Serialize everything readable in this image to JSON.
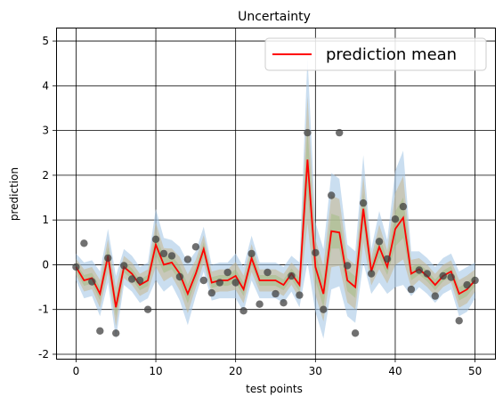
{
  "chart_data": {
    "type": "line",
    "title": "Uncertainty",
    "xlabel": "test points",
    "ylabel": "prediction",
    "xlim": [
      -2.5,
      52.5
    ],
    "ylim": [
      -2.1,
      5.3
    ],
    "xticks": [
      0,
      10,
      20,
      30,
      40,
      50
    ],
    "yticks": [
      -2,
      -1,
      0,
      1,
      2,
      3,
      4,
      5
    ],
    "grid": true,
    "legend": {
      "position": "top-right",
      "entries": [
        "prediction mean"
      ]
    },
    "colors": {
      "mean": "#ff0000",
      "points": "#404040",
      "band_outer": "#a6c8e6",
      "band_mid": "#c7b68e",
      "band_inner": "#9dbb7a"
    },
    "x": [
      0,
      1,
      2,
      3,
      4,
      5,
      6,
      7,
      8,
      9,
      10,
      11,
      12,
      13,
      14,
      15,
      16,
      17,
      18,
      19,
      20,
      21,
      22,
      23,
      24,
      25,
      26,
      27,
      28,
      29,
      30,
      31,
      32,
      33,
      34,
      35,
      36,
      37,
      38,
      39,
      40,
      41,
      42,
      43,
      44,
      45,
      46,
      47,
      48,
      49,
      50
    ],
    "series": [
      {
        "name": "prediction mean",
        "values": [
          -0.05,
          -0.35,
          -0.3,
          -0.65,
          0.2,
          -0.95,
          -0.05,
          -0.2,
          -0.45,
          -0.35,
          0.45,
          0.0,
          0.05,
          -0.2,
          -0.65,
          -0.2,
          0.35,
          -0.4,
          -0.35,
          -0.35,
          -0.25,
          -0.55,
          0.15,
          -0.35,
          -0.35,
          -0.35,
          -0.45,
          -0.2,
          -0.45,
          2.35,
          -0.05,
          -0.65,
          0.75,
          0.72,
          -0.35,
          -0.5,
          1.25,
          -0.15,
          0.4,
          -0.05,
          0.8,
          1.05,
          -0.2,
          -0.1,
          -0.25,
          -0.45,
          -0.25,
          -0.15,
          -0.65,
          -0.55,
          -0.35
        ]
      },
      {
        "name": "",
        "values": [
          -0.05,
          0.48,
          -0.38,
          -1.48,
          0.15,
          -1.53,
          -0.02,
          -0.32,
          -0.35,
          -1.0,
          0.57,
          0.25,
          0.2,
          -0.27,
          0.12,
          0.4,
          -0.35,
          -0.63,
          -0.4,
          -0.17,
          -0.4,
          -1.03,
          0.25,
          -0.88,
          -0.17,
          -0.65,
          -0.85,
          -0.25,
          -0.68,
          2.95,
          0.27,
          -1.0,
          1.55,
          2.95,
          -0.02,
          -1.53,
          1.38,
          -0.2,
          0.52,
          0.13,
          1.02,
          1.3,
          -0.55,
          -0.12,
          -0.2,
          -0.7,
          -0.25,
          -0.28,
          -1.25,
          -0.45,
          -0.35
        ]
      }
    ],
    "band_halfwidths": [
      0.3,
      0.4,
      0.4,
      0.5,
      0.6,
      0.7,
      0.4,
      0.4,
      0.4,
      0.4,
      0.8,
      0.6,
      0.5,
      0.6,
      0.7,
      0.5,
      0.5,
      0.4,
      0.4,
      0.4,
      0.5,
      0.5,
      0.5,
      0.4,
      0.4,
      0.4,
      0.4,
      0.4,
      0.5,
      2.3,
      1.0,
      1.0,
      1.3,
      1.2,
      0.8,
      0.8,
      1.2,
      0.5,
      0.8,
      0.6,
      1.3,
      1.5,
      0.5,
      0.4,
      0.4,
      0.4,
      0.4,
      0.4,
      0.5,
      0.5,
      0.4
    ]
  }
}
